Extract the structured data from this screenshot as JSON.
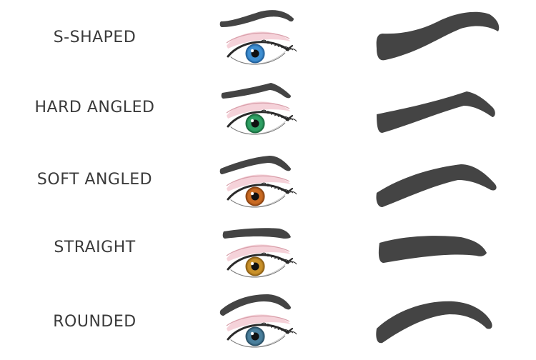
{
  "brow_shapes": [
    {
      "id": "s-shaped",
      "label": "S-SHAPED",
      "iris_color": "#3f8fd2",
      "iris_dark": "#1f5d97"
    },
    {
      "id": "hard-angled",
      "label": "HARD ANGLED",
      "iris_color": "#2fa064",
      "iris_dark": "#17693c"
    },
    {
      "id": "soft-angled",
      "label": "SOFT ANGLED",
      "iris_color": "#c96a22",
      "iris_dark": "#87400f"
    },
    {
      "id": "straight",
      "label": "STRAIGHT",
      "iris_color": "#c9912a",
      "iris_dark": "#8a5c12"
    },
    {
      "id": "rounded",
      "label": "ROUNDED",
      "iris_color": "#4a7f9c",
      "iris_dark": "#274d63"
    }
  ],
  "colors": {
    "brow_fill": "#444444",
    "label_text": "#3a3a3a",
    "eyeshadow": "#f2c7cf",
    "eyeline": "#2b2b2b"
  }
}
